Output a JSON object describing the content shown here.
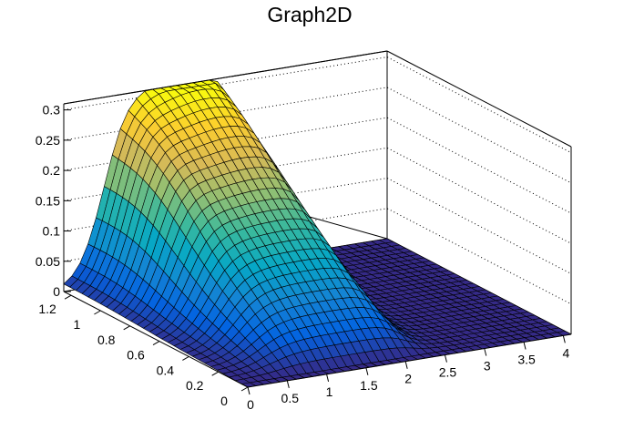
{
  "chart_data": {
    "type": "surface",
    "title": "Graph2D",
    "xlabel": "",
    "ylabel": "",
    "zlabel": "",
    "xlim": [
      0,
      4.1
    ],
    "ylim": [
      0,
      1.25
    ],
    "zlim": [
      0,
      0.31
    ],
    "x_ticks": [
      "0",
      "0.5",
      "1",
      "1.5",
      "2",
      "2.5",
      "3",
      "3.5",
      "4"
    ],
    "y_ticks": [
      "0",
      "0.2",
      "0.4",
      "0.6",
      "0.8",
      "1",
      "1.2"
    ],
    "z_ticks": [
      "0",
      "0.05",
      "0.1",
      "0.15",
      "0.2",
      "0.25",
      "0.3"
    ],
    "grid": true,
    "palette": "kBird",
    "surface_description_points": [
      {
        "x": 1.0,
        "y": 1.1,
        "z": 0.31
      },
      {
        "x": 1.5,
        "y": 1.1,
        "z": 0.3
      },
      {
        "x": 2.0,
        "y": 1.05,
        "z": 0.27
      },
      {
        "x": 1.2,
        "y": 0.6,
        "z": 0.16
      },
      {
        "x": 1.8,
        "y": 0.4,
        "z": 0.1
      },
      {
        "x": 2.1,
        "y": 0.9,
        "z": 0.22
      },
      {
        "x": 0.5,
        "y": 0.9,
        "z": 0.06
      },
      {
        "x": 3.0,
        "y": 0.5,
        "z": 0.0
      }
    ],
    "colors": {
      "palette_stops": [
        "#352a87",
        "#0363e1",
        "#1485d4",
        "#06a7c6",
        "#38b99e",
        "#92bf73",
        "#d9ba56",
        "#fcce2e",
        "#f9fb0e"
      ]
    }
  }
}
